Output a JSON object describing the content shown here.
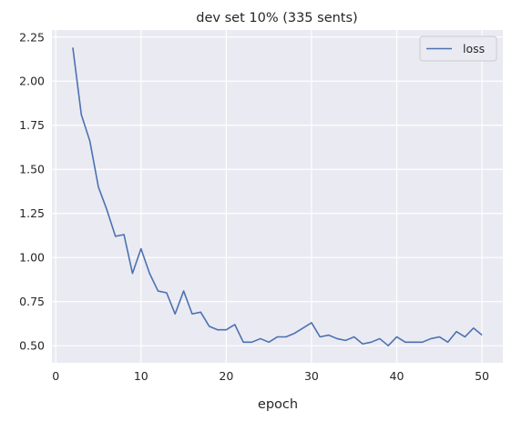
{
  "chart_data": {
    "type": "line",
    "title": "dev set 10% (335 sents)",
    "xlabel": "epoch",
    "ylabel": "",
    "xlim": [
      -0.45,
      52.45
    ],
    "ylim": [
      0.403,
      2.29
    ],
    "xticks": [
      0,
      10,
      20,
      30,
      40,
      50
    ],
    "yticks": [
      0.5,
      0.75,
      1.0,
      1.25,
      1.5,
      1.75,
      2.0,
      2.25
    ],
    "xtick_labels": [
      "0",
      "10",
      "20",
      "30",
      "40",
      "50"
    ],
    "ytick_labels": [
      "0.50",
      "0.75",
      "1.00",
      "1.25",
      "1.50",
      "1.75",
      "2.00",
      "2.25"
    ],
    "grid": true,
    "legend_position": "top-right",
    "series": [
      {
        "name": "loss",
        "color": "#4c72b0",
        "x": [
          2,
          3,
          4,
          5,
          6,
          7,
          8,
          9,
          10,
          11,
          12,
          13,
          14,
          15,
          16,
          17,
          18,
          19,
          20,
          21,
          22,
          23,
          24,
          25,
          26,
          27,
          28,
          29,
          30,
          31,
          32,
          33,
          34,
          35,
          36,
          37,
          38,
          39,
          40,
          41,
          42,
          43,
          44,
          45,
          46,
          47,
          48,
          49,
          50
        ],
        "values": [
          2.19,
          1.81,
          1.66,
          1.4,
          1.27,
          1.12,
          1.13,
          0.91,
          1.05,
          0.91,
          0.81,
          0.8,
          0.68,
          0.81,
          0.68,
          0.69,
          0.61,
          0.59,
          0.59,
          0.62,
          0.52,
          0.52,
          0.54,
          0.52,
          0.55,
          0.55,
          0.57,
          0.6,
          0.63,
          0.55,
          0.56,
          0.54,
          0.53,
          0.55,
          0.51,
          0.52,
          0.54,
          0.5,
          0.55,
          0.52,
          0.52,
          0.52,
          0.54,
          0.55,
          0.52,
          0.58,
          0.55,
          0.6,
          0.56
        ]
      }
    ]
  },
  "colors": {
    "plot_background": "#eaeaf2",
    "grid": "#ffffff",
    "line": "#4c72b0"
  }
}
